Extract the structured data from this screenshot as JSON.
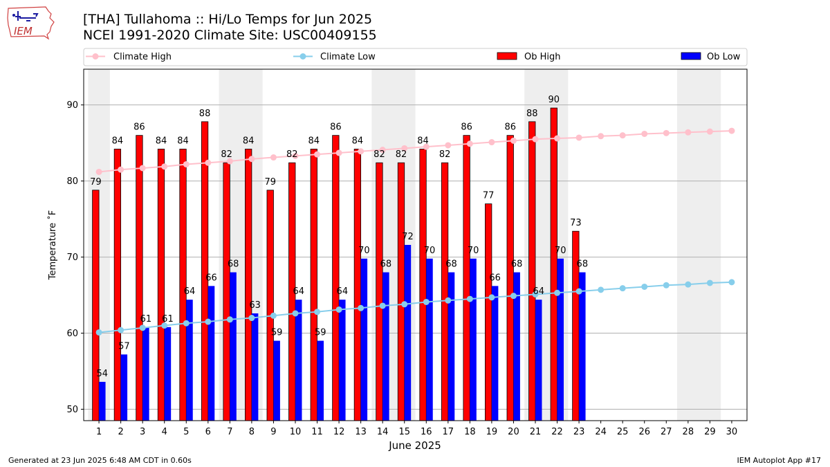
{
  "header": {
    "title_line1": "[THA] Tullahoma :: Hi/Lo Temps for Jun 2025",
    "title_line2": "NCEI 1991-2020 Climate Site: USC00409155",
    "logo_text": "IEM"
  },
  "footer": {
    "left": "Generated at 23 Jun 2025 6:48 AM CDT in 0.60s",
    "right": "IEM Autoplot App #17"
  },
  "chart_data": {
    "type": "bar",
    "xlabel": "June 2025",
    "ylabel": "Temperature ˚F",
    "ylim": [
      48.5,
      94.7
    ],
    "yticks": [
      50,
      60,
      70,
      80,
      90
    ],
    "grid": "horizontal",
    "legend_position": "top",
    "days": [
      1,
      2,
      3,
      4,
      5,
      6,
      7,
      8,
      9,
      10,
      11,
      12,
      13,
      14,
      15,
      16,
      17,
      18,
      19,
      20,
      21,
      22,
      23,
      24,
      25,
      26,
      27,
      28,
      29,
      30
    ],
    "weekend_shading": [
      [
        1,
        1
      ],
      [
        7,
        8
      ],
      [
        14,
        15
      ],
      [
        21,
        22
      ],
      [
        28,
        29
      ]
    ],
    "series": [
      {
        "name": "Climate High",
        "kind": "line",
        "color": "#ffc0cb",
        "values": [
          81.2,
          81.5,
          81.7,
          81.9,
          82.2,
          82.4,
          82.6,
          82.9,
          83.1,
          83.3,
          83.5,
          83.7,
          83.9,
          84.1,
          84.3,
          84.5,
          84.7,
          84.9,
          85.1,
          85.3,
          85.5,
          85.6,
          85.7,
          85.9,
          86.0,
          86.2,
          86.3,
          86.4,
          86.5,
          86.6
        ]
      },
      {
        "name": "Climate Low",
        "kind": "line",
        "color": "#87ceeb",
        "values": [
          60.1,
          60.4,
          60.7,
          61.0,
          61.3,
          61.5,
          61.8,
          62.0,
          62.3,
          62.6,
          62.8,
          63.1,
          63.3,
          63.6,
          63.8,
          64.1,
          64.3,
          64.5,
          64.7,
          64.9,
          65.1,
          65.3,
          65.5,
          65.7,
          65.9,
          66.1,
          66.3,
          66.4,
          66.6,
          66.7
        ]
      },
      {
        "name": "Ob High",
        "kind": "bar",
        "color": "#ff0000",
        "values": [
          78.8,
          84.2,
          86.0,
          84.2,
          84.2,
          87.8,
          82.4,
          84.2,
          78.8,
          82.4,
          84.2,
          86.0,
          84.2,
          82.4,
          82.4,
          84.2,
          82.4,
          86.0,
          77.0,
          86.0,
          87.8,
          89.6,
          73.4
        ],
        "labels": [
          "79",
          "84",
          "86",
          "84",
          "84",
          "88",
          "82",
          "84",
          "79",
          "82",
          "84",
          "86",
          "84",
          "82",
          "82",
          "84",
          "82",
          "86",
          "77",
          "86",
          "88",
          "90",
          "73"
        ]
      },
      {
        "name": "Ob Low",
        "kind": "bar",
        "color": "#0000ff",
        "values": [
          53.6,
          57.2,
          60.8,
          60.8,
          64.4,
          66.2,
          68.0,
          62.6,
          59.0,
          64.4,
          59.0,
          64.4,
          69.8,
          68.0,
          71.6,
          69.8,
          68.0,
          69.8,
          66.2,
          68.0,
          64.4,
          69.8,
          68.0
        ],
        "labels": [
          "54",
          "57",
          "61",
          "61",
          "64",
          "66",
          "68",
          "63",
          "59",
          "64",
          "59",
          "64",
          "70",
          "68",
          "72",
          "70",
          "68",
          "70",
          "66",
          "68",
          "64",
          "70",
          "68"
        ]
      }
    ]
  }
}
